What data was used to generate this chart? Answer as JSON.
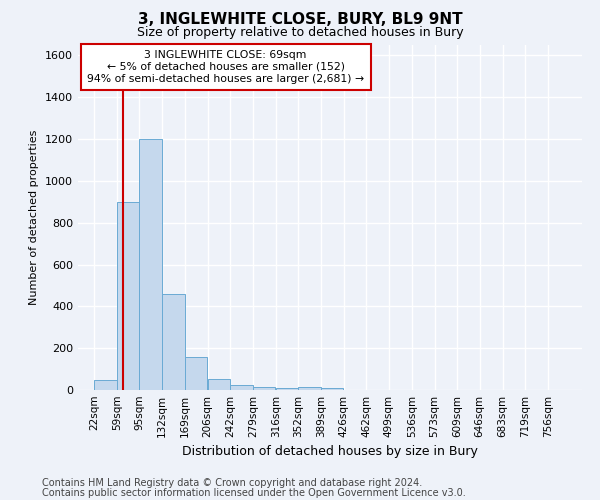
{
  "title": "3, INGLEWHITE CLOSE, BURY, BL9 9NT",
  "subtitle": "Size of property relative to detached houses in Bury",
  "xlabel": "Distribution of detached houses by size in Bury",
  "ylabel": "Number of detached properties",
  "footnote1": "Contains HM Land Registry data © Crown copyright and database right 2024.",
  "footnote2": "Contains public sector information licensed under the Open Government Licence v3.0.",
  "annotation_line1": "3 INGLEWHITE CLOSE: 69sqm",
  "annotation_line2": "← 5% of detached houses are smaller (152)",
  "annotation_line3": "94% of semi-detached houses are larger (2,681) →",
  "bar_color": "#c5d8ed",
  "bar_edge_color": "#6aaad4",
  "redline_x": 69,
  "categories": [
    "22sqm",
    "59sqm",
    "95sqm",
    "132sqm",
    "169sqm",
    "206sqm",
    "242sqm",
    "279sqm",
    "316sqm",
    "352sqm",
    "389sqm",
    "426sqm",
    "462sqm",
    "499sqm",
    "536sqm",
    "573sqm",
    "609sqm",
    "646sqm",
    "683sqm",
    "719sqm",
    "756sqm"
  ],
  "bin_edges": [
    22,
    59,
    95,
    132,
    169,
    206,
    242,
    279,
    316,
    352,
    389,
    426,
    462,
    499,
    536,
    573,
    609,
    646,
    683,
    719,
    756
  ],
  "values": [
    50,
    900,
    1200,
    460,
    160,
    55,
    25,
    15,
    10,
    15,
    10,
    0,
    0,
    0,
    0,
    0,
    0,
    0,
    0,
    0,
    0
  ],
  "ylim": [
    0,
    1650
  ],
  "background_color": "#eef2f9",
  "grid_color": "#ffffff",
  "annotation_box_color": "#ffffff",
  "annotation_box_edge": "#cc0000",
  "redline_color": "#cc0000",
  "title_fontsize": 11,
  "subtitle_fontsize": 9,
  "ylabel_fontsize": 8,
  "xlabel_fontsize": 9,
  "tick_fontsize": 7.5,
  "footnote_fontsize": 7
}
